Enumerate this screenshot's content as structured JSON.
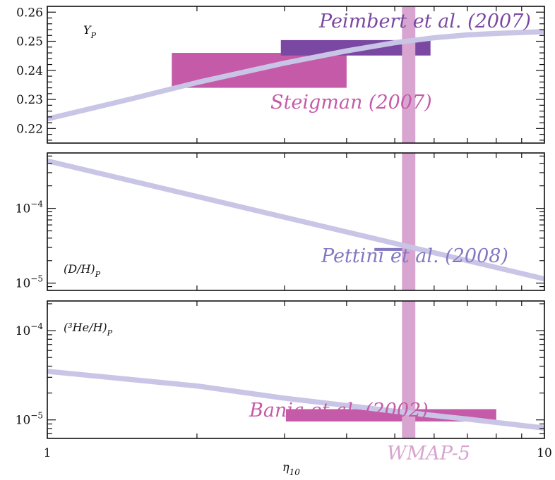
{
  "chart_data": [
    {
      "type": "area",
      "panel": "top",
      "label": "Y",
      "label_sub": "P",
      "x_scale": "log",
      "xlim": [
        1,
        10
      ],
      "ylim": [
        0.215,
        0.262
      ],
      "y_scale": "linear",
      "yticks": [
        0.22,
        0.23,
        0.24,
        0.25,
        0.26
      ],
      "ytick_labels": [
        "0.22",
        "0.23",
        "0.24",
        "0.25",
        "0.26"
      ],
      "curve": {
        "x": [
          1,
          1.5,
          2,
          3,
          4,
          5,
          6,
          7,
          8,
          10
        ],
        "y": [
          0.2233,
          0.2305,
          0.2358,
          0.2425,
          0.2467,
          0.2495,
          0.2512,
          0.2522,
          0.2527,
          0.2533
        ]
      },
      "boxes": [
        {
          "name": "Steigman (2007)",
          "x": [
            1.78,
            4.0
          ],
          "y": [
            0.234,
            0.246
          ],
          "color": "#c55aa8"
        },
        {
          "name": "Peimbert et al. (2007)",
          "x": [
            2.95,
            5.9
          ],
          "y": [
            0.2451,
            0.2504
          ],
          "color": "#7a48a2"
        }
      ],
      "annotations": [
        {
          "text": "Peimbert et al. (2007)",
          "color": "#7a48a2"
        },
        {
          "text": "Steigman (2007)",
          "color": "#c55aa8"
        }
      ]
    },
    {
      "type": "area",
      "panel": "middle",
      "label": "(D/H)",
      "label_sub": "P",
      "x_scale": "log",
      "xlim": [
        1,
        10
      ],
      "y_scale": "log",
      "ylim": [
        8e-06,
        0.00055
      ],
      "yticks": [
        1e-05,
        0.0001
      ],
      "ytick_labels": [
        {
          "base": "10",
          "exp": "−5"
        },
        {
          "base": "10",
          "exp": "−4"
        }
      ],
      "curve": {
        "x": [
          1,
          10
        ],
        "y": [
          0.00043,
          1.14e-05
        ]
      },
      "boxes": [
        {
          "name": "Pettini et al. (2008)",
          "x": [
            4.55,
            5.3
          ],
          "y": [
            2.7e-05,
            2.95e-05
          ],
          "color": "#8378c2"
        }
      ],
      "annotations": [
        {
          "text": "Pettini et al. (2008)",
          "color": "#8378c2"
        }
      ]
    },
    {
      "type": "area",
      "panel": "bottom",
      "label": "(³He/H)",
      "label_sub": "P",
      "x_scale": "log",
      "xlim": [
        1,
        10
      ],
      "y_scale": "log",
      "ylim": [
        6.2e-06,
        0.000215
      ],
      "yticks": [
        1e-05,
        0.0001
      ],
      "ytick_labels": [
        {
          "base": "10",
          "exp": "−5"
        },
        {
          "base": "10",
          "exp": "−4"
        }
      ],
      "curve": {
        "x": [
          1,
          2,
          3,
          5,
          7,
          10
        ],
        "y": [
          3.5e-05,
          2.4e-05,
          1.75e-05,
          1.25e-05,
          1.02e-05,
          8.1e-06
        ]
      },
      "boxes": [
        {
          "name": "Bania et al. (2002)",
          "x": [
            3.02,
            8.0
          ],
          "y": [
            9.6e-06,
            1.32e-05
          ],
          "color": "#c55aa8"
        }
      ],
      "annotations": [
        {
          "text": "Bania et al. (2002)",
          "color": "#c55aa8"
        }
      ]
    }
  ],
  "x_axis": {
    "label": "η",
    "label_sub": "10",
    "ticks": [
      1,
      10
    ],
    "tick_labels": [
      "1",
      "10"
    ]
  },
  "wmap_band": {
    "name": "WMAP-5",
    "x": [
      5.17,
      5.5
    ],
    "color": "#d8a4d0"
  },
  "colors": {
    "curve": "#c9c5e6",
    "axis": "#111111"
  }
}
